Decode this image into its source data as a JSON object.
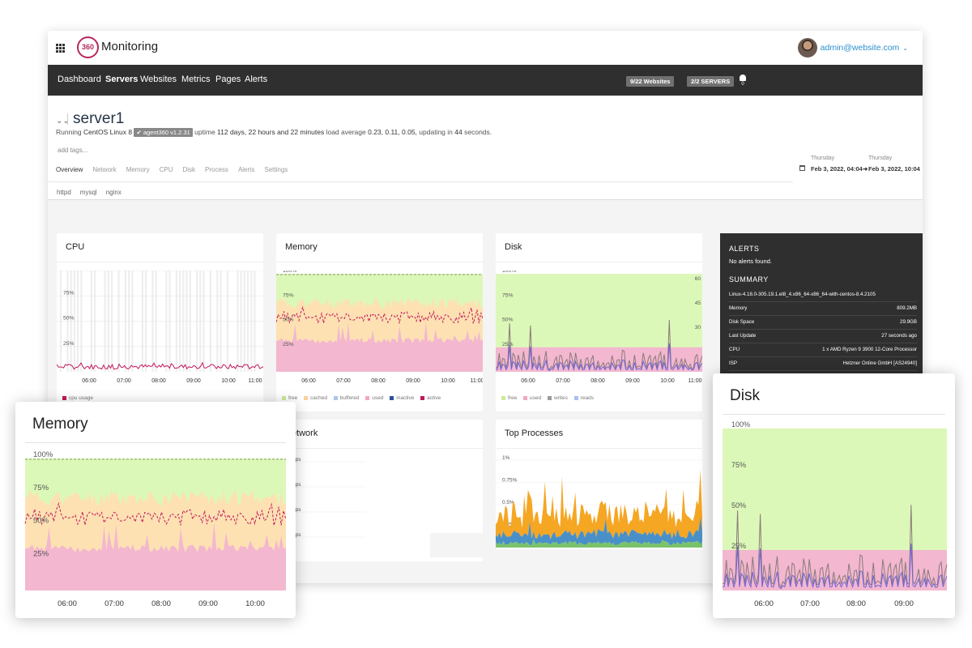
{
  "app": {
    "brand": "Monitoring",
    "logo_text": "360",
    "user": "admin@website.com",
    "nav": [
      "Dashboard",
      "Servers",
      "Websites",
      "Metrics",
      "Pages",
      "Alerts"
    ],
    "active_nav": "Servers",
    "websites_pill": "9/22 Websites",
    "servers_pill": "2/2 SERVERS",
    "notification_count": "0"
  },
  "server": {
    "name": "server1",
    "running_label": "Running",
    "os": "CentOS Linux 8",
    "agent": "agent360 v1.2.31",
    "uptime_label": "uptime",
    "uptime": "112 days, 22 hours and 22 minutes",
    "load_label": "load average",
    "load": "0.23, 0.11, 0.05,",
    "updating_label": "updating in",
    "updating": "44",
    "seconds_label": "seconds.",
    "add_tags": "add tags...",
    "tabs": [
      "Overview",
      "Network",
      "Memory",
      "CPU",
      "Disk",
      "Process",
      "Alerts",
      "Settings"
    ],
    "subtabs": [
      "httpd",
      "mysql",
      "nginx"
    ],
    "range_from_day": "Thursday",
    "range_from": "Feb 3, 2022, 04:04",
    "range_to_day": "Thursday",
    "range_to": "Feb 3, 2022, 10:04"
  },
  "cards": {
    "cpu": {
      "title": "CPU",
      "legend": [
        "cpu usage"
      ]
    },
    "memory": {
      "title": "Memory",
      "legend": [
        "free",
        "cached",
        "buffered",
        "used",
        "inactive",
        "active"
      ]
    },
    "disk": {
      "title": "Disk",
      "legend": [
        "free",
        "used",
        "writes",
        "reads"
      ],
      "right_axis": [
        "60",
        "45",
        "30"
      ]
    },
    "network": {
      "title": "Network",
      "ticks": [
        "bps",
        "bps",
        "bps",
        "bps"
      ]
    },
    "processes": {
      "title": "Top Processes",
      "ticks": [
        "1%",
        "0.75%",
        "0.5%",
        "0.25%"
      ]
    }
  },
  "y_ticks": [
    "100%",
    "75%",
    "50%",
    "25%"
  ],
  "x_ticks": [
    "06:00",
    "07:00",
    "08:00",
    "09:00",
    "10:00",
    "11:00"
  ],
  "sidebar": {
    "alerts_heading": "ALERTS",
    "alerts_text": "No alerts found.",
    "summary_heading": "SUMMARY",
    "kernel": "Linux-4.18.0-305.19.1.el8_4.x86_64-x86_64-with-centos-8.4.2105",
    "rows": [
      {
        "k": "Memory",
        "v": "809.2MB"
      },
      {
        "k": "Disk Space",
        "v": "29.9GB"
      },
      {
        "k": "Last Update",
        "v": "27 seconds ago"
      },
      {
        "k": "CPU",
        "v": "1 x AMD Ryzen 9 3900 12-Core Processor"
      },
      {
        "k": "ISP",
        "v": "Hetzner Online GmbH [AS24940]"
      }
    ]
  },
  "zoom_memory": {
    "title": "Memory",
    "x_ticks": [
      "06:00",
      "07:00",
      "08:00",
      "09:00",
      "10:00"
    ]
  },
  "zoom_disk": {
    "title": "Disk",
    "x_ticks": [
      "06:00",
      "07:00",
      "08:00",
      "09:00"
    ]
  },
  "colors": {
    "free": "#dcf8b8",
    "cached": "#fde1b3",
    "used": "#f3b7cf",
    "active": "#c2185b",
    "cpu": "#c2185b",
    "writes": "#8a7a7a",
    "reads": "#6f63d8",
    "proc_orange": "#f5a623",
    "proc_blue": "#4a90c8",
    "proc_green": "#7ac36a"
  }
}
